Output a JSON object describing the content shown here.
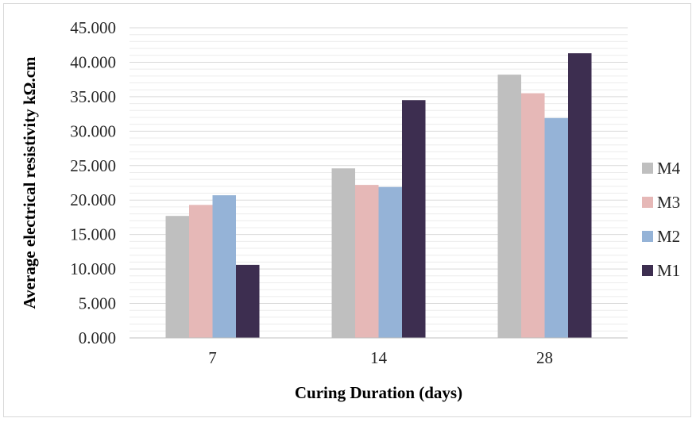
{
  "chart_data": {
    "type": "bar",
    "categories": [
      "7",
      "14",
      "28"
    ],
    "series": [
      {
        "name": "M4",
        "color": "#bfbfbf",
        "values": [
          17.7,
          24.6,
          38.2
        ]
      },
      {
        "name": "M3",
        "color": "#e6b8b7",
        "values": [
          19.3,
          22.2,
          35.5
        ]
      },
      {
        "name": "M2",
        "color": "#95b3d7",
        "values": [
          20.7,
          21.9,
          31.9
        ]
      },
      {
        "name": "M1",
        "color": "#3d2e50",
        "values": [
          10.6,
          34.5,
          41.3
        ]
      }
    ],
    "title": "",
    "xlabel": "Curing Duration (days)",
    "ylabel": "Average electrical resistivity kΩ.cm",
    "ylim": [
      0,
      45
    ],
    "yticks": [
      "0.000",
      "5.000",
      "10.000",
      "15.000",
      "20.000",
      "25.000",
      "30.000",
      "35.000",
      "40.000",
      "45.000"
    ],
    "grid": "horizontal",
    "legend_position": "right",
    "legend_order": [
      "M4",
      "M3",
      "M2",
      "M1"
    ]
  }
}
